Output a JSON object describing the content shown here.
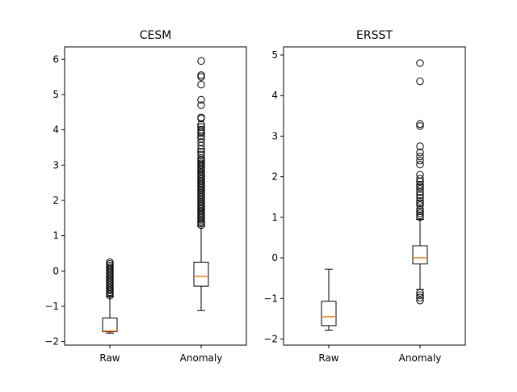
{
  "chart_data": [
    {
      "type": "box",
      "title": "CESM",
      "categories": [
        "Raw",
        "Anomaly"
      ],
      "ylim": [
        -2.1,
        6.35
      ],
      "yticks": [
        -2,
        -1,
        0,
        1,
        2,
        3,
        4,
        5,
        6
      ],
      "yticklabels": [
        "−2",
        "−1",
        "0",
        "1",
        "2",
        "3",
        "4",
        "5",
        "6"
      ],
      "boxes": [
        {
          "name": "Raw",
          "whisker_low": -1.76,
          "q1": -1.72,
          "median": -1.7,
          "q3": -1.33,
          "whisker_high": -0.72,
          "outliers": [
            -0.7,
            -0.65,
            -0.6,
            -0.55,
            -0.5,
            -0.45,
            -0.4,
            -0.35,
            -0.3,
            -0.25,
            -0.2,
            -0.15,
            -0.1,
            -0.05,
            0.0,
            0.05,
            0.1,
            0.15,
            0.2,
            0.25
          ]
        },
        {
          "name": "Anomaly",
          "whisker_low": -1.12,
          "q1": -0.43,
          "median": -0.15,
          "q3": 0.25,
          "whisker_high": 1.27,
          "outliers": [
            1.3,
            1.35,
            1.4,
            1.45,
            1.5,
            1.55,
            1.6,
            1.65,
            1.7,
            1.75,
            1.8,
            1.85,
            1.9,
            1.95,
            2.0,
            2.05,
            2.1,
            2.15,
            2.2,
            2.25,
            2.3,
            2.35,
            2.4,
            2.45,
            2.5,
            2.55,
            2.6,
            2.65,
            2.7,
            2.75,
            2.8,
            2.85,
            2.9,
            2.95,
            3.0,
            3.05,
            3.1,
            3.15,
            3.2,
            3.3,
            3.38,
            3.45,
            3.55,
            3.65,
            3.75,
            3.82,
            3.9,
            3.95,
            4.0,
            4.08,
            4.15,
            4.32,
            4.35,
            4.7,
            4.85,
            5.28,
            5.5,
            5.55,
            5.95
          ]
        }
      ]
    },
    {
      "type": "box",
      "title": "ERSST",
      "categories": [
        "Raw",
        "Anomaly"
      ],
      "ylim": [
        -2.15,
        5.2
      ],
      "yticks": [
        -2,
        -1,
        0,
        1,
        2,
        3,
        4,
        5
      ],
      "yticklabels": [
        "−2",
        "−1",
        "0",
        "1",
        "2",
        "3",
        "4",
        "5"
      ],
      "boxes": [
        {
          "name": "Raw",
          "whisker_low": -1.78,
          "q1": -1.67,
          "median": -1.45,
          "q3": -1.07,
          "whisker_high": -0.28,
          "outliers": []
        },
        {
          "name": "Anomaly",
          "whisker_low": -0.78,
          "q1": -0.15,
          "median": 0.0,
          "q3": 0.3,
          "whisker_high": 0.95,
          "outliers": [
            -1.05,
            -0.98,
            -0.92,
            -0.86,
            1.0,
            1.05,
            1.1,
            1.15,
            1.2,
            1.3,
            1.35,
            1.4,
            1.48,
            1.55,
            1.62,
            1.7,
            1.75,
            1.8,
            1.88,
            1.95,
            2.05,
            2.3,
            2.4,
            2.5,
            2.6,
            2.75,
            3.25,
            3.3,
            4.35,
            4.8
          ]
        }
      ]
    }
  ],
  "colors": {
    "box": "#000000",
    "median": "#ff7f0e",
    "background": "#ffffff"
  }
}
